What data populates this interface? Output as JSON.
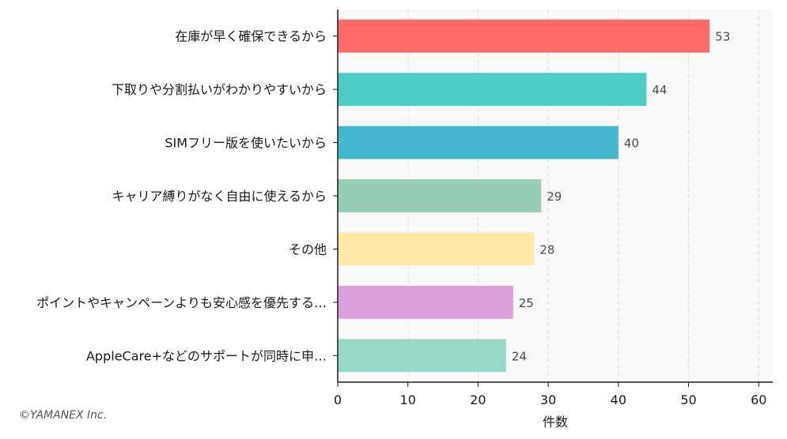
{
  "chart_data": {
    "type": "bar",
    "orientation": "horizontal",
    "categories": [
      "在庫が早く確保できるから",
      "下取りや分割払いがわかりやすいから",
      "SIMフリー版を使いたいから",
      "キャリア縛りがなく自由に使えるから",
      "その他",
      "ポイントやキャンペーンよりも安心感を優先する…",
      "AppleCare+などのサポートが同時に申…"
    ],
    "values": [
      53,
      44,
      40,
      29,
      28,
      25,
      24
    ],
    "colors": [
      "#ff6b6b",
      "#4ecdc4",
      "#45b7d1",
      "#96ceb4",
      "#ffeaa7",
      "#dda0dd",
      "#98d8c8"
    ],
    "xlabel": "件数",
    "xlim": [
      0,
      62
    ],
    "xticks": [
      0,
      10,
      20,
      30,
      40,
      50,
      60
    ],
    "grid": "vertical-dashed",
    "background": "#f9f9f9"
  },
  "footer": {
    "credit": "©YAMANEX Inc."
  }
}
